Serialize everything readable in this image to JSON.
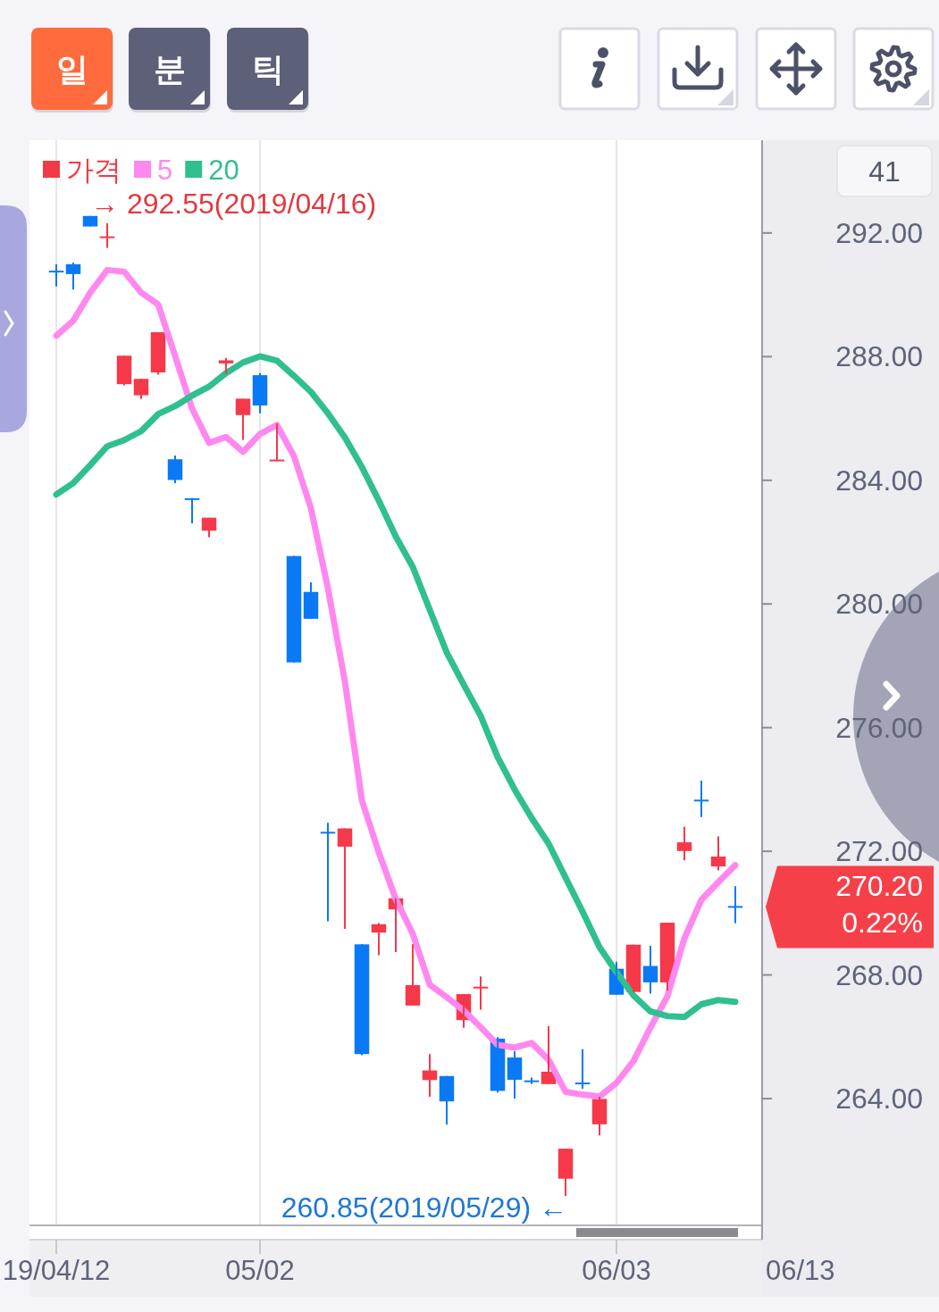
{
  "chart_data": {
    "type": "candlestick",
    "categories": [
      "19/04/12",
      null,
      null,
      null,
      null,
      null,
      null,
      null,
      null,
      null,
      null,
      null,
      "05/02",
      null,
      null,
      null,
      null,
      null,
      null,
      null,
      null,
      null,
      null,
      null,
      null,
      null,
      null,
      null,
      null,
      null,
      null,
      null,
      null,
      "06/03",
      null,
      null,
      null,
      null,
      null,
      null,
      null
    ],
    "series": [
      {
        "type": "candlestick",
        "name": "가격",
        "color": "#f23a45",
        "colors": [
          "#0a79f5",
          "#0a79f5",
          "#0a79f5",
          "#f5394a",
          "#f5394a",
          "#f5394a",
          "#f5394a",
          "#0a79f5",
          "#0a79f5",
          "#f5394a",
          "#f5394a",
          "#f5394a",
          "#0a79f5",
          "#f5394a",
          "#0a79f5",
          "#0a79f5",
          "#0a79f5",
          "#f5394a",
          "#0a79f5",
          "#f5394a",
          "#f5394a",
          "#f5394a",
          "#f5394a",
          "#0a79f5",
          "#f5394a",
          "#f5394a",
          "#0a79f5",
          "#0a79f5",
          "#0a79f5",
          "#f5394a",
          "#f5394a",
          "#0a79f5",
          "#f5394a",
          "#0a79f5",
          "#f5394a",
          "#0a79f5",
          "#f5394a",
          "#f5394a",
          "#0a79f5",
          "#f5394a",
          "#0a79f5"
        ],
        "ohlc": [
          [
            290.78,
            290.99,
            290.27,
            290.74
          ],
          [
            290.99,
            291.04,
            290.17,
            290.67
          ],
          [
            292.55,
            292.55,
            292.21,
            292.21
          ],
          [
            291.86,
            292.31,
            291.52,
            291.89
          ],
          [
            287.11,
            288.03,
            287.07,
            288.03
          ],
          [
            286.75,
            287.28,
            286.63,
            287.28
          ],
          [
            287.49,
            288.79,
            287.42,
            288.79
          ],
          [
            284.68,
            284.8,
            283.91,
            284.01
          ],
          [
            283.42,
            283.42,
            282.61,
            283.39
          ],
          [
            282.37,
            282.79,
            282.16,
            282.79
          ],
          [
            287.78,
            287.96,
            287.43,
            287.88
          ],
          [
            286.11,
            286.64,
            285.31,
            286.64
          ],
          [
            287.4,
            287.47,
            286.17,
            286.42
          ],
          [
            284.64,
            285.84,
            284.64,
            284.67
          ],
          [
            281.55,
            281.55,
            278.11,
            278.11
          ],
          [
            280.39,
            280.7,
            279.52,
            279.52
          ],
          [
            272.63,
            272.92,
            269.74,
            272.61
          ],
          [
            272.15,
            272.74,
            269.49,
            272.74
          ],
          [
            268.99,
            268.99,
            265.4,
            265.44
          ],
          [
            269.37,
            269.68,
            268.64,
            269.64
          ],
          [
            270.12,
            270.48,
            268.74,
            270.48
          ],
          [
            267.01,
            268.99,
            267.01,
            267.67
          ],
          [
            264.6,
            265.44,
            264.06,
            264.91
          ],
          [
            264.73,
            264.73,
            263.16,
            263.91
          ],
          [
            266.54,
            267.38,
            266.29,
            267.38
          ],
          [
            267.59,
            267.95,
            266.88,
            267.62
          ],
          [
            265.94,
            265.99,
            264.2,
            264.25
          ],
          [
            265.33,
            265.53,
            264.0,
            264.61
          ],
          [
            264.59,
            264.68,
            264.47,
            264.57
          ],
          [
            264.47,
            266.34,
            264.47,
            264.87
          ],
          [
            261.41,
            262.38,
            260.85,
            262.38
          ],
          [
            264.52,
            265.6,
            264.32,
            264.5
          ],
          [
            263.17,
            264.06,
            262.81,
            263.99
          ],
          [
            268.2,
            268.43,
            267.36,
            267.36
          ],
          [
            267.45,
            268.98,
            267.45,
            268.98
          ],
          [
            268.29,
            268.94,
            267.4,
            267.76
          ],
          [
            267.76,
            269.69,
            267.5,
            269.69
          ],
          [
            272.01,
            272.79,
            271.71,
            272.29
          ],
          [
            273.67,
            274.29,
            273.11,
            273.65
          ],
          [
            271.51,
            272.48,
            271.38,
            271.83
          ],
          [
            270.23,
            270.87,
            269.67,
            270.2
          ]
        ]
      },
      {
        "type": "line",
        "name": "5",
        "color": "#ff88f0",
        "values": [
          288.68,
          289.16,
          290.07,
          290.8,
          290.75,
          290.07,
          289.69,
          288.02,
          286.32,
          285.21,
          285.4,
          284.92,
          285.5,
          285.79,
          284.78,
          283.1,
          280.51,
          277.5,
          273.65,
          271.96,
          270.45,
          269.33,
          267.68,
          267.28,
          266.85,
          266.31,
          265.74,
          265.65,
          265.8,
          265.26,
          264.22,
          264.13,
          264.07,
          264.51,
          265.21,
          266.3,
          267.31,
          269.18,
          270.43,
          271.0,
          271.55
        ]
      },
      {
        "type": "line",
        "name": "20",
        "color": "#30bf8f",
        "values": [
          283.54,
          283.91,
          284.49,
          285.1,
          285.3,
          285.59,
          286.14,
          286.4,
          286.74,
          287.03,
          287.47,
          287.81,
          288.01,
          287.87,
          287.38,
          286.86,
          286.17,
          285.39,
          284.43,
          283.34,
          282.18,
          281.2,
          279.81,
          278.43,
          277.39,
          276.38,
          275.05,
          274.0,
          273.08,
          272.25,
          271.15,
          270.05,
          268.9,
          268.09,
          267.34,
          266.82,
          266.67,
          266.64,
          267.05,
          267.19,
          267.13
        ]
      }
    ],
    "ylim": [
      259.9,
      295.0
    ],
    "yticks": [
      {
        "value": 264,
        "label": "264.00"
      },
      {
        "value": 268,
        "label": "268.00"
      },
      {
        "value": 272,
        "label": "272.00"
      },
      {
        "value": 276,
        "label": "276.00"
      },
      {
        "value": 280,
        "label": "280.00"
      },
      {
        "value": 284,
        "label": "284.00"
      },
      {
        "value": 288,
        "label": "288.00"
      },
      {
        "value": 292,
        "label": "292.00"
      }
    ],
    "grid": "x",
    "legend": "top left",
    "annotations": [
      "일",
      "분",
      "틱",
      "41",
      "06/13",
      "→ 292.55(2019/04/16)",
      "260.85(2019/05/29) ←",
      "270.20\n0.22%"
    ]
  }
}
